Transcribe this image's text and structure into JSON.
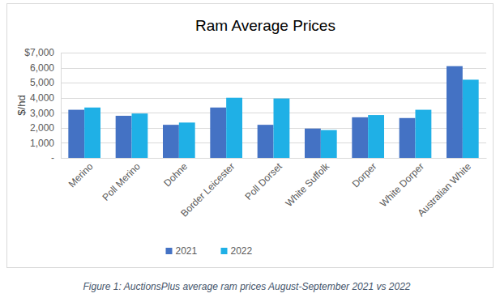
{
  "chart_data": {
    "type": "bar",
    "title": "Ram Average Prices",
    "ylabel": "$/hd",
    "caption": "Figure 1: AuctionsPlus average ram prices August-September 2021 vs 2022",
    "categories": [
      "Merino",
      "Poll Merino",
      "Dohne",
      "Border Leicester",
      "Poll Dorset",
      "White Suffolk",
      "Dorper",
      "White Dorper",
      "Australian White"
    ],
    "series": [
      {
        "name": "2021",
        "color": "#4472c4",
        "values": [
          3200,
          2800,
          2200,
          3350,
          2200,
          1950,
          2700,
          2650,
          6100
        ]
      },
      {
        "name": "2022",
        "color": "#1fb0e6",
        "values": [
          3350,
          2950,
          2350,
          4000,
          3950,
          1850,
          2850,
          3200,
          5200
        ]
      }
    ],
    "ylim": [
      0,
      7000
    ],
    "yticks": [
      {
        "value": 0,
        "label": "-"
      },
      {
        "value": 1000,
        "label": "1,000"
      },
      {
        "value": 2000,
        "label": "2,000"
      },
      {
        "value": 3000,
        "label": "3,000"
      },
      {
        "value": 4000,
        "label": "4,000"
      },
      {
        "value": 5000,
        "label": "5,000"
      },
      {
        "value": 6000,
        "label": "6,000"
      },
      {
        "value": 7000,
        "label": "$7,000"
      }
    ],
    "grid": true,
    "legend": "bottom"
  }
}
